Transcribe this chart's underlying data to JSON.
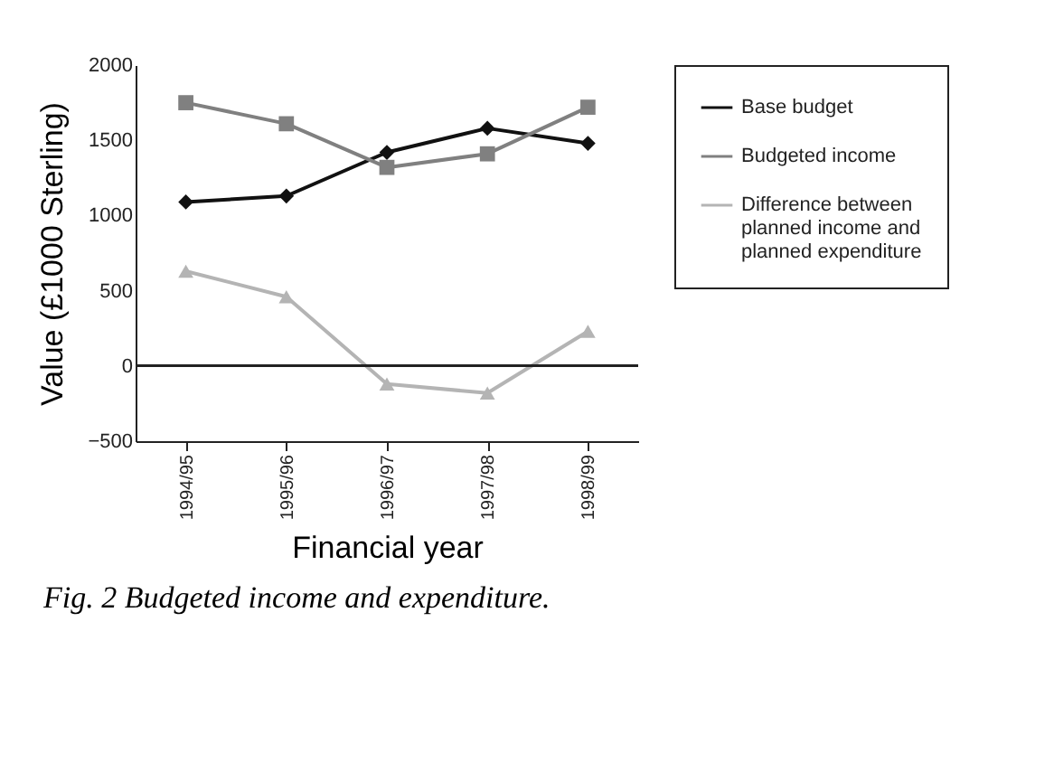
{
  "chart_data": {
    "type": "line",
    "xlabel": "Financial year",
    "ylabel": "Value (£1000 Sterling)",
    "categories": [
      "1994/95",
      "1995/96",
      "1996/97",
      "1997/98",
      "1998/99"
    ],
    "series": [
      {
        "name": "Base budget",
        "color": "#111111",
        "marker": "diamond",
        "values": [
          1090,
          1130,
          1420,
          1580,
          1480
        ]
      },
      {
        "name": "Budgeted income",
        "color": "#808080",
        "marker": "square",
        "values": [
          1750,
          1610,
          1320,
          1410,
          1720
        ]
      },
      {
        "name": "Difference between planned income and planned expenditure",
        "color": "#b4b4b4",
        "marker": "triangle",
        "values": [
          630,
          460,
          -120,
          -180,
          230
        ]
      }
    ],
    "ylim": [
      -500,
      2000
    ],
    "yticks": [
      -500,
      0,
      500,
      1000,
      1500,
      2000
    ],
    "ref_lines": [
      {
        "axis": "y",
        "value": 0
      }
    ],
    "grid": false,
    "legend": "right",
    "annotations": [
      "Fig. 2  Budgeted income and expenditure."
    ]
  }
}
